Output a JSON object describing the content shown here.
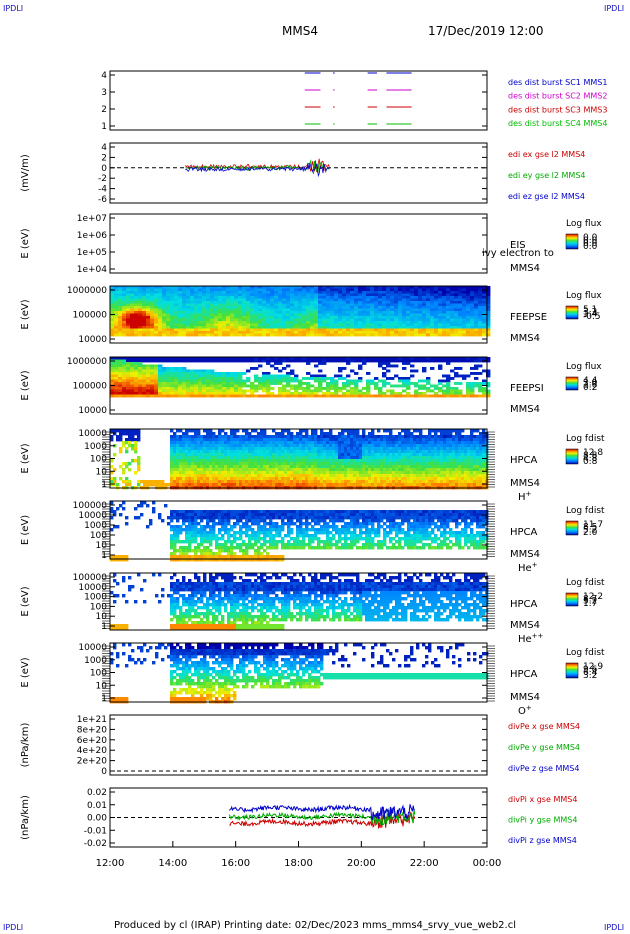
{
  "header": {
    "corner_tl": "IPDLI",
    "corner_tr": "IPDLI",
    "corner_bl": "IPDLI",
    "corner_br": "IPDLI",
    "spacecraft": "MMS4",
    "datetime": "17/Dec/2019 12:00"
  },
  "footer": {
    "text": "Produced by cl (IRAP)   Printing date: 02/Dec/2023   mms_mms4_srvy_vue_web2.cl"
  },
  "colors": {
    "c1": "#0000cc",
    "c2": "#cc00cc",
    "c3": "#cc0000",
    "c4": "#00bb00",
    "ex": "#cc0000",
    "ey": "#00aa00",
    "ez": "#0000cc"
  },
  "chart_data": {
    "type": "multi-panel",
    "x_axis": {
      "ticks": [
        "12:00",
        "14:00",
        "16:00",
        "18:00",
        "20:00",
        "22:00",
        "00:00"
      ],
      "range_hours": [
        12,
        24
      ]
    },
    "panels": [
      {
        "id": "burst",
        "type": "line",
        "y_ticks": [
          "4",
          "3",
          "2",
          "1"
        ],
        "legend": [
          {
            "text": "des dist burst SC1 MMS1",
            "color": "#0000cc"
          },
          {
            "text": "des dist burst SC2 MMS2",
            "color": "#cc00cc"
          },
          {
            "text": "des dist burst SC3 MMS3",
            "color": "#cc0000"
          },
          {
            "text": "des dist burst SC4 MMS4",
            "color": "#00bb00"
          }
        ],
        "segments_hours": [
          [
            18.2,
            18.7
          ],
          [
            19.1,
            19.15
          ],
          [
            20.2,
            20.5
          ],
          [
            20.8,
            21.6
          ]
        ]
      },
      {
        "id": "edi",
        "type": "line",
        "ylabel": "(mV/m)",
        "y_ticks": [
          "4",
          "2",
          "0",
          "-2",
          "-4",
          "-6"
        ],
        "legend": [
          {
            "text": "edi ex gse l2 MMS4",
            "color": "#cc0000"
          },
          {
            "text": "edi ey gse l2 MMS4",
            "color": "#00aa00"
          },
          {
            "text": "edi ez gse l2 MMS4",
            "color": "#0000cc"
          }
        ],
        "data_range_hours": [
          14.4,
          19.0
        ]
      },
      {
        "id": "eis",
        "type": "heatmap",
        "ylabel": "E (eV)",
        "y_ticks": [
          "1e+07",
          "1e+06",
          "1e+05",
          "1e+04"
        ],
        "labels": [
          "EIS",
          "MMS4"
        ],
        "overlay": "ivy electron to",
        "colorbar_title": "Log flux",
        "colorbar_ticks": [
          "0.0",
          "0.0",
          "0.0",
          "0.0"
        ]
      },
      {
        "id": "feepse",
        "type": "heatmap",
        "ylabel": "E (eV)",
        "y_ticks": [
          "1000000",
          "100000",
          "10000"
        ],
        "labels": [
          "FEEPSE",
          "MMS4"
        ],
        "colorbar_title": "Log flux",
        "colorbar_ticks": [
          "5.1",
          "3.2",
          "1.4",
          "-0.5"
        ]
      },
      {
        "id": "feepsi",
        "type": "heatmap",
        "ylabel": "E (eV)",
        "y_ticks": [
          "1000000",
          "100000",
          "10000"
        ],
        "labels": [
          "FEEPSI",
          "MMS4"
        ],
        "colorbar_title": "Log flux",
        "colorbar_ticks": [
          "4.4",
          "3.0",
          "1.6",
          "0.2"
        ]
      },
      {
        "id": "hpca_h",
        "type": "heatmap",
        "ylabel": "E (eV)",
        "y_ticks": [
          "10000",
          "1000",
          "100",
          "10",
          "1"
        ],
        "labels": [
          "HPCA",
          "MMS4"
        ],
        "species": "H",
        "species_sup": "+",
        "colorbar_title": "Log fdist",
        "colorbar_ticks": [
          "12.8",
          "8.8",
          "4.8",
          "0.8"
        ]
      },
      {
        "id": "hpca_he",
        "type": "heatmap",
        "ylabel": "E (eV)",
        "y_ticks": [
          "100000",
          "10000",
          "1000",
          "100",
          "10",
          "1"
        ],
        "labels": [
          "HPCA",
          "MMS4"
        ],
        "species": "He",
        "species_sup": "+",
        "colorbar_title": "Log fdist",
        "colorbar_ticks": [
          "11.7",
          "8.5",
          "5.2",
          "2.0"
        ]
      },
      {
        "id": "hpca_he2",
        "type": "heatmap",
        "ylabel": "E (eV)",
        "y_ticks": [
          "100000",
          "10000",
          "1000",
          "100",
          "10",
          "1"
        ],
        "labels": [
          "HPCA",
          "MMS4"
        ],
        "species": "He",
        "species_sup": "++",
        "colorbar_title": "Log fdist",
        "colorbar_ticks": [
          "12.2",
          "8.7",
          "5.2",
          "1.7"
        ]
      },
      {
        "id": "hpca_o",
        "type": "heatmap",
        "ylabel": "E (eV)",
        "y_ticks": [
          "10000",
          "1000",
          "100",
          "10",
          "1"
        ],
        "labels": [
          "HPCA",
          "MMS4"
        ],
        "species": "O",
        "species_sup": "+",
        "colorbar_title": "Log fdist",
        "colorbar_ticks": [
          "12.9",
          "9.6",
          "6.4",
          "3.2"
        ]
      },
      {
        "id": "divpe",
        "type": "line",
        "ylabel": "(nPa/km)",
        "y_ticks": [
          "1e+21",
          "8e+20",
          "6e+20",
          "4e+20",
          "2e+20",
          "0"
        ],
        "legend": [
          {
            "text": "divPe x gse MMS4",
            "color": "#cc0000"
          },
          {
            "text": "divPe y gse MMS4",
            "color": "#00aa00"
          },
          {
            "text": "divPe z gse MMS4",
            "color": "#0000cc"
          }
        ]
      },
      {
        "id": "divpi",
        "type": "line",
        "ylabel": "(nPa/km)",
        "y_ticks": [
          "0.02",
          "0.01",
          "0.00",
          "-0.01",
          "-0.02"
        ],
        "legend": [
          {
            "text": "divPi x gse MMS4",
            "color": "#cc0000"
          },
          {
            "text": "divPi y gse MMS4",
            "color": "#00aa00"
          },
          {
            "text": "divPi z gse MMS4",
            "color": "#0000cc"
          }
        ],
        "series_summary": [
          {
            "name": "x",
            "mean": -0.004,
            "range_hours": [
              15.8,
              21.7
            ]
          },
          {
            "name": "y",
            "mean": 0.001,
            "range_hours": [
              15.8,
              21.7
            ]
          },
          {
            "name": "z",
            "mean": 0.007,
            "range_hours": [
              15.8,
              21.7
            ]
          }
        ]
      }
    ]
  }
}
